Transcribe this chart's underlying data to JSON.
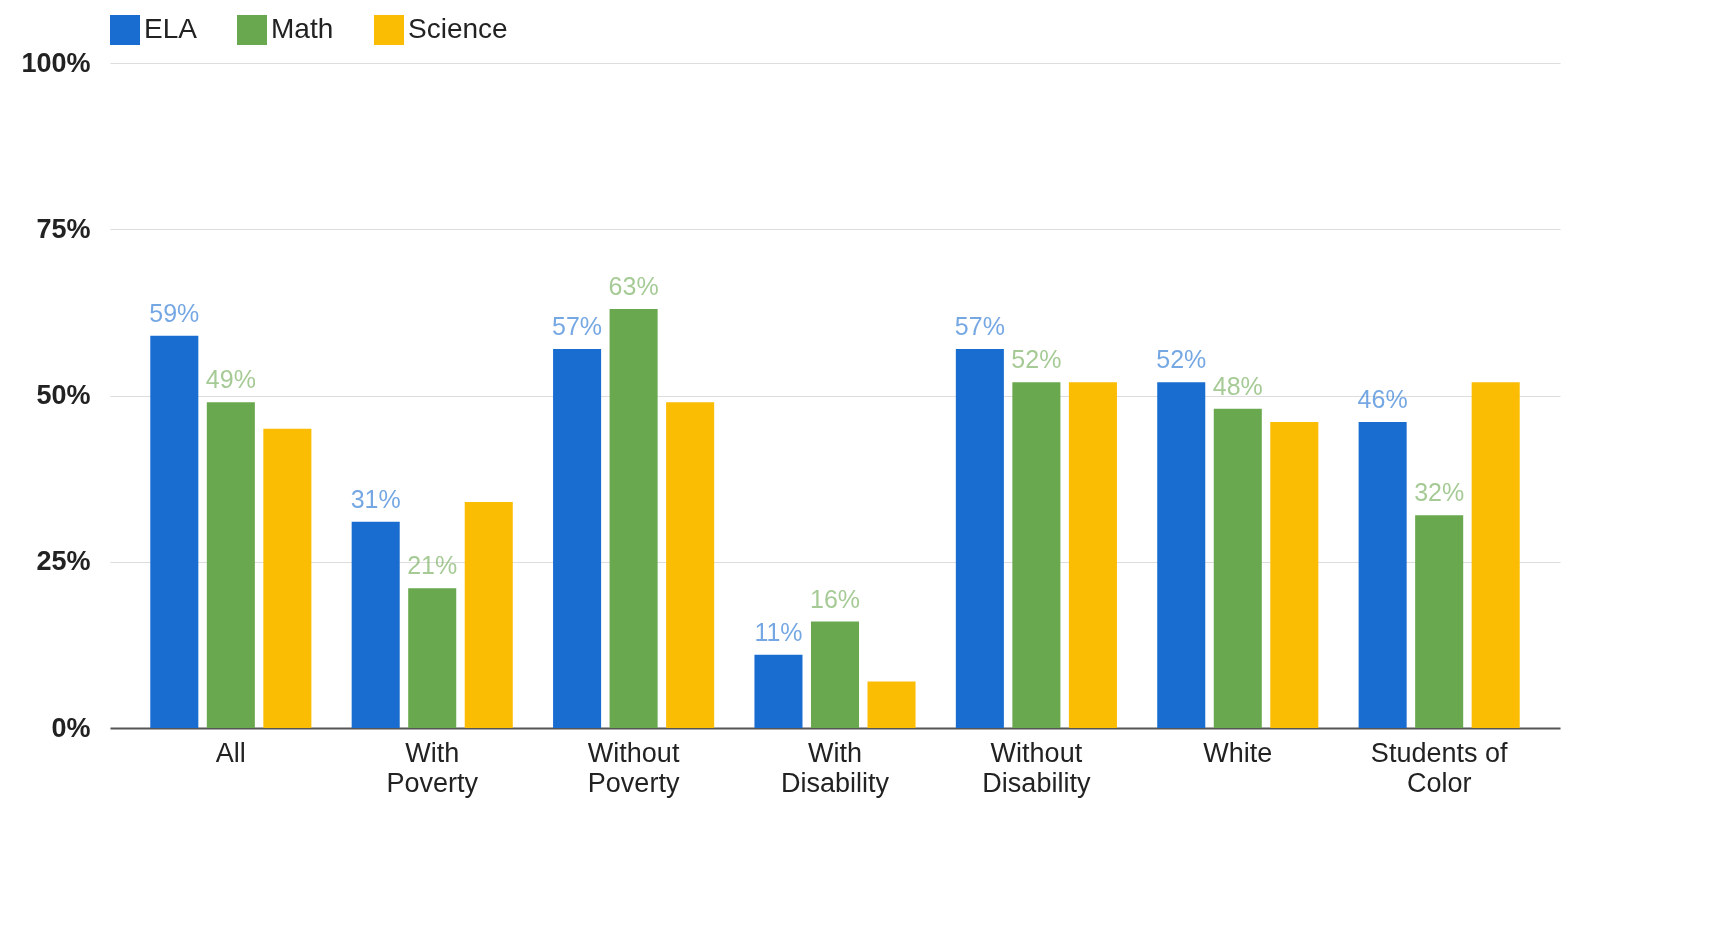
{
  "chart_data": {
    "type": "bar",
    "categories": [
      "All",
      "With Poverty",
      "Without Poverty",
      "With Disability",
      "Without Disability",
      "White",
      "Students of Color"
    ],
    "series": [
      {
        "name": "ELA",
        "color": "#1a6dd0",
        "values": [
          59,
          31,
          57,
          11,
          57,
          52,
          46
        ],
        "value_labels": [
          "59%",
          "31%",
          "57%",
          "11%",
          "57%",
          "52%",
          "46%"
        ]
      },
      {
        "name": "Math",
        "color": "#6aa84f",
        "values": [
          49,
          21,
          63,
          16,
          52,
          48,
          32
        ],
        "value_labels": [
          "49%",
          "21%",
          "63%",
          "16%",
          "52%",
          "48%",
          "32%"
        ]
      },
      {
        "name": "Science",
        "color": "#fbbc04",
        "values": [
          45,
          34,
          49,
          7,
          52,
          46,
          52
        ]
      }
    ],
    "ylim": [
      0,
      100
    ],
    "yticks": [
      {
        "value": 0,
        "label": "0%"
      },
      {
        "value": 25,
        "label": "25%"
      },
      {
        "value": 50,
        "label": "50%"
      },
      {
        "value": 75,
        "label": "75%"
      },
      {
        "value": 100,
        "label": "100%"
      }
    ],
    "grid": "y",
    "legend": "top"
  }
}
